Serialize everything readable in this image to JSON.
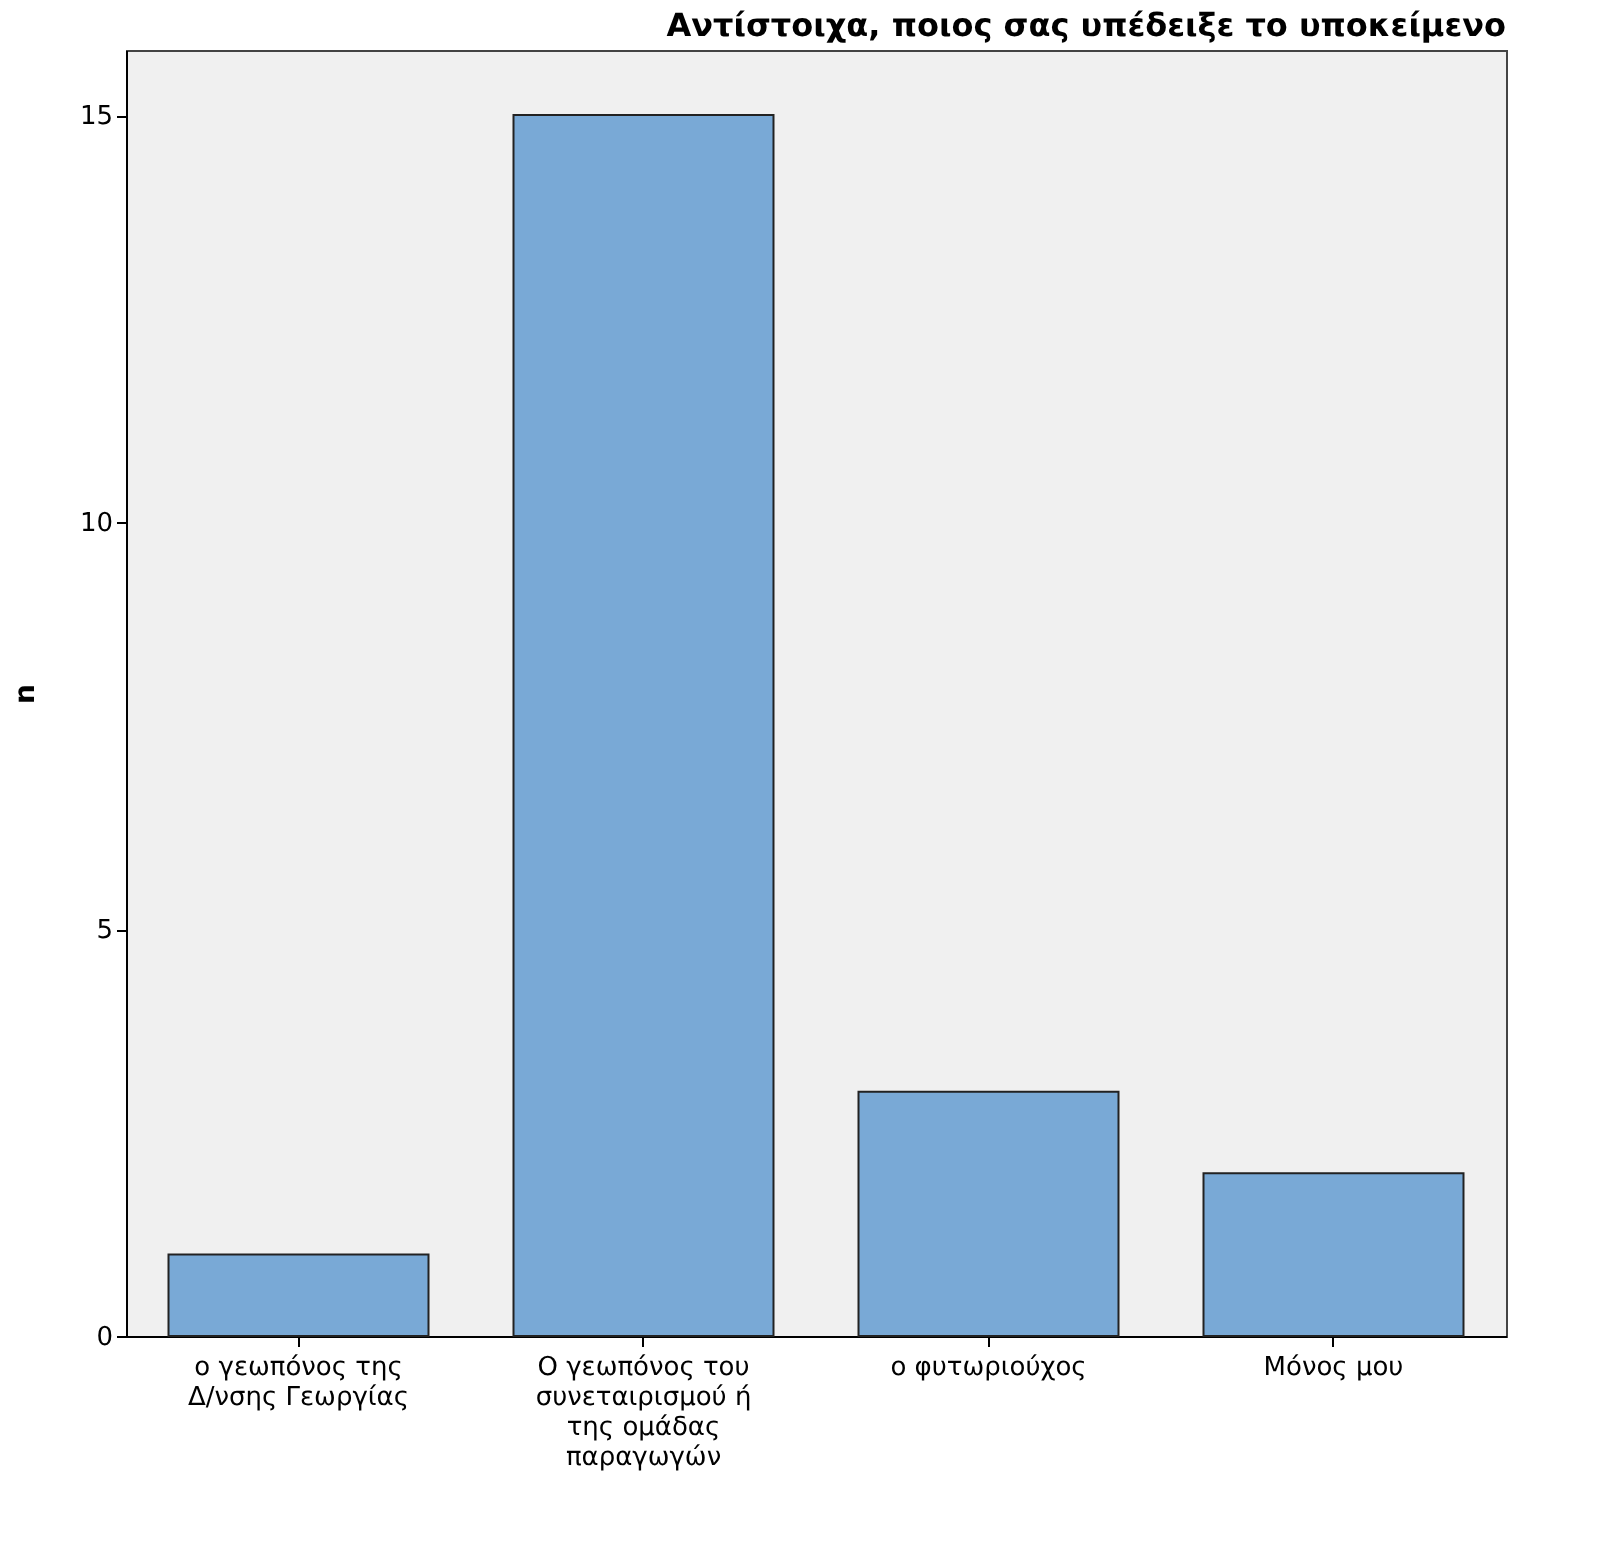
{
  "chart_data": {
    "type": "bar",
    "title": "Αντίστοιχα, ποιος σας υπέδειξε το υποκείμενο",
    "ylabel": "n",
    "categories": [
      "ο γεωπόνος της Δ/νσης Γεωργίας",
      "Ο γεωπόνος του συνεταιρισμού ή της ομάδας παραγωγών",
      "ο φυτωριούχος",
      "Μόνος μου"
    ],
    "values": [
      1,
      15,
      3,
      2
    ],
    "color": "#79a9d6",
    "ylim": [
      0,
      15.8
    ],
    "yticks": [
      0,
      5,
      10,
      15
    ],
    "grid": false
  }
}
